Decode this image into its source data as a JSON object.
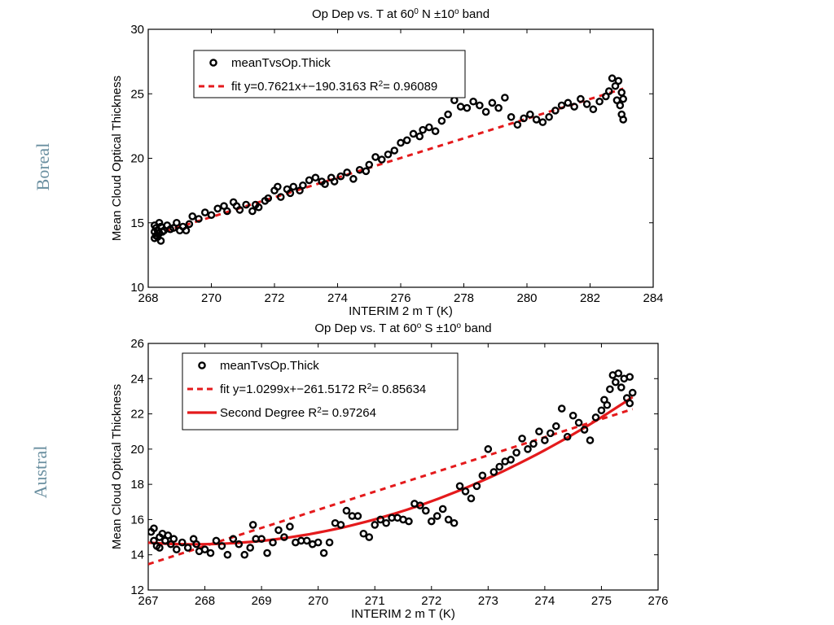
{
  "side_labels": {
    "top": "Boreal",
    "bottom": "Austral"
  },
  "chart_data": [
    {
      "type": "scatter",
      "title": "Op Dep vs. T at 60",
      "title_sup1": "0",
      "title_mid": " N ±10",
      "title_sup2": "o",
      "title_end": " band",
      "xlabel": "INTERIM 2 m T (K)",
      "ylabel": "Mean Cloud Optical Thickness",
      "xlim": [
        268,
        284
      ],
      "ylim": [
        10,
        30
      ],
      "xticks": [
        268,
        270,
        272,
        274,
        276,
        278,
        280,
        282,
        284
      ],
      "yticks": [
        10,
        15,
        20,
        25,
        30
      ],
      "legend_position": "top-left",
      "colors": {
        "points": "#000000",
        "fit": "#e41a1c"
      },
      "series": [
        {
          "name": "meanTvsOp.Thick",
          "kind": "points",
          "x": [
            268.2,
            268.2,
            268.2,
            268.25,
            268.25,
            268.3,
            268.3,
            268.35,
            268.35,
            268.4,
            268.4,
            268.45,
            268.5,
            268.6,
            268.7,
            268.8,
            268.9,
            269.0,
            269.1,
            269.2,
            269.3,
            269.4,
            269.6,
            269.8,
            270.0,
            270.2,
            270.4,
            270.5,
            270.7,
            270.8,
            270.9,
            271.1,
            271.3,
            271.4,
            271.5,
            271.7,
            271.8,
            272.0,
            272.1,
            272.2,
            272.4,
            272.5,
            272.6,
            272.8,
            272.9,
            273.1,
            273.3,
            273.5,
            273.6,
            273.8,
            273.9,
            274.1,
            274.3,
            274.5,
            274.7,
            274.9,
            275.0,
            275.2,
            275.4,
            275.6,
            275.8,
            276.0,
            276.2,
            276.4,
            276.6,
            276.7,
            276.9,
            277.1,
            277.3,
            277.5,
            277.7,
            277.9,
            278.1,
            278.3,
            278.5,
            278.7,
            278.9,
            279.1,
            279.3,
            279.5,
            279.7,
            279.9,
            280.1,
            280.3,
            280.5,
            280.7,
            280.9,
            281.1,
            281.3,
            281.5,
            281.7,
            281.9,
            282.1,
            282.3,
            282.5,
            282.6,
            282.7,
            282.8,
            282.85,
            282.9,
            282.95,
            283.0,
            283.0,
            283.05,
            283.05
          ],
          "y": [
            13.8,
            14.3,
            14.8,
            14.0,
            14.6,
            13.9,
            14.4,
            15.0,
            14.2,
            14.7,
            13.6,
            14.3,
            14.4,
            14.8,
            14.5,
            14.6,
            15.0,
            14.4,
            14.7,
            14.4,
            14.9,
            15.5,
            15.3,
            15.8,
            15.6,
            16.1,
            16.3,
            15.9,
            16.6,
            16.3,
            16.0,
            16.4,
            15.9,
            16.4,
            16.2,
            16.7,
            16.9,
            17.5,
            17.8,
            17.0,
            17.6,
            17.3,
            17.8,
            17.5,
            17.9,
            18.3,
            18.5,
            18.2,
            18.0,
            18.5,
            18.2,
            18.6,
            18.9,
            18.4,
            19.1,
            19.0,
            19.5,
            20.1,
            19.9,
            20.3,
            20.6,
            21.2,
            21.4,
            21.9,
            21.7,
            22.2,
            22.4,
            22.1,
            22.9,
            23.4,
            24.5,
            24.0,
            23.9,
            24.4,
            24.1,
            23.6,
            24.3,
            23.9,
            24.7,
            23.2,
            22.6,
            23.1,
            23.4,
            23.0,
            22.8,
            23.2,
            23.7,
            24.1,
            24.3,
            24.0,
            24.6,
            24.2,
            23.8,
            24.4,
            24.8,
            25.2,
            26.2,
            25.6,
            24.5,
            26.0,
            24.1,
            25.1,
            23.4,
            23.0,
            24.6
          ]
        },
        {
          "name": "fit y=0.7621x+−190.3163 R",
          "name_sup": "2",
          "name_end": "= 0.96089",
          "kind": "line",
          "style": "dashed",
          "slope": 0.7621,
          "intercept": -190.3163,
          "x_range": [
            268.2,
            283.05
          ]
        }
      ]
    },
    {
      "type": "scatter",
      "title": "Op Dep vs. T at 60",
      "title_sup1": "o",
      "title_mid": " S ±10",
      "title_sup2": "o",
      "title_end": " band",
      "xlabel": "INTERIM 2 m T (K)",
      "ylabel": "Mean Cloud Optical Thickness",
      "xlim": [
        267,
        276
      ],
      "ylim": [
        12,
        26
      ],
      "xticks": [
        267,
        268,
        269,
        270,
        271,
        272,
        273,
        274,
        275,
        276
      ],
      "yticks": [
        12,
        14,
        16,
        18,
        20,
        22,
        24,
        26
      ],
      "legend_position": "top-left",
      "colors": {
        "points": "#000000",
        "fit": "#e41a1c",
        "quadratic": "#e41a1c"
      },
      "series": [
        {
          "name": "meanTvsOp.Thick",
          "kind": "points",
          "x": [
            267.05,
            267.1,
            267.1,
            267.15,
            267.2,
            267.2,
            267.25,
            267.3,
            267.35,
            267.4,
            267.45,
            267.5,
            267.6,
            267.7,
            267.8,
            267.85,
            267.9,
            268.0,
            268.1,
            268.2,
            268.3,
            268.4,
            268.5,
            268.6,
            268.7,
            268.8,
            268.85,
            268.9,
            269.0,
            269.1,
            269.2,
            269.3,
            269.4,
            269.5,
            269.6,
            269.7,
            269.8,
            269.9,
            270.0,
            270.1,
            270.2,
            270.3,
            270.4,
            270.5,
            270.6,
            270.7,
            270.8,
            270.9,
            271.0,
            271.1,
            271.2,
            271.3,
            271.4,
            271.5,
            271.6,
            271.7,
            271.8,
            271.9,
            272.0,
            272.1,
            272.2,
            272.3,
            272.4,
            272.5,
            272.6,
            272.7,
            272.8,
            272.9,
            273.0,
            273.1,
            273.2,
            273.3,
            273.4,
            273.5,
            273.6,
            273.7,
            273.8,
            273.9,
            274.0,
            274.1,
            274.2,
            274.3,
            274.4,
            274.5,
            274.6,
            274.7,
            274.8,
            274.9,
            275.0,
            275.05,
            275.1,
            275.15,
            275.2,
            275.25,
            275.3,
            275.35,
            275.4,
            275.45,
            275.5,
            275.5,
            275.55
          ],
          "y": [
            15.3,
            14.8,
            15.5,
            14.5,
            15.0,
            14.4,
            15.2,
            14.8,
            15.1,
            14.6,
            14.9,
            14.3,
            14.7,
            14.4,
            14.9,
            14.6,
            14.2,
            14.3,
            14.1,
            14.8,
            14.5,
            14.0,
            14.9,
            14.6,
            14.0,
            14.4,
            15.7,
            14.9,
            14.9,
            14.1,
            14.7,
            15.4,
            15.0,
            15.6,
            14.7,
            14.8,
            14.8,
            14.6,
            14.7,
            14.1,
            14.7,
            15.8,
            15.7,
            16.5,
            16.2,
            16.2,
            15.2,
            15.0,
            15.7,
            16.0,
            15.8,
            16.1,
            16.1,
            16.0,
            15.9,
            16.9,
            16.8,
            16.5,
            15.9,
            16.2,
            16.6,
            16.0,
            15.8,
            17.9,
            17.6,
            17.2,
            17.9,
            18.5,
            20.0,
            18.7,
            19.0,
            19.3,
            19.4,
            19.8,
            20.6,
            20.0,
            20.3,
            21.0,
            20.5,
            20.9,
            21.3,
            22.3,
            20.7,
            21.9,
            21.5,
            21.1,
            20.5,
            21.8,
            22.2,
            22.8,
            22.5,
            23.4,
            24.2,
            23.8,
            24.3,
            23.5,
            24.0,
            22.9,
            24.1,
            22.6,
            23.2
          ]
        },
        {
          "name": "fit y=1.0299x+−261.5172 R",
          "name_sup": "2",
          "name_end": "= 0.85634",
          "kind": "line",
          "style": "dashed",
          "slope": 1.0299,
          "intercept": -261.5172,
          "x_range": [
            267.0,
            275.55
          ]
        },
        {
          "name": "Second Degree R",
          "name_sup": "2",
          "name_end": "= 0.97264",
          "kind": "curve",
          "style": "solid",
          "coeffs": [
            14.6,
            0.05,
            0.14,
            268.0
          ],
          "x_range": [
            267.0,
            275.55
          ]
        }
      ]
    }
  ]
}
